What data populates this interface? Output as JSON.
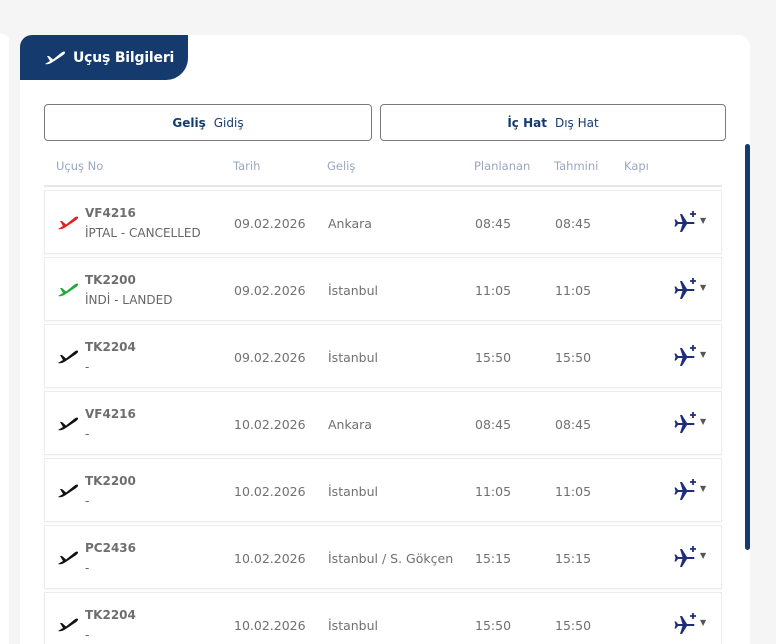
{
  "panel": {
    "title": "Uçuş Bilgileri",
    "title_icon": "plane-takeoff-icon"
  },
  "direction_toggle": {
    "active": "Geliş",
    "inactive": "Gidiş"
  },
  "scope_toggle": {
    "active": "İç Hat",
    "inactive": "Dış Hat"
  },
  "columns": {
    "flight_no": "Uçuş No",
    "date": "Tarih",
    "origin": "Geliş",
    "planned": "Planlanan",
    "estimated": "Tahmini",
    "gate": "Kapı"
  },
  "colors": {
    "brand": "#153a6e",
    "cancelled": "#e02020",
    "landed": "#20a83a",
    "scheduled": "#111111",
    "notify": "#1f2d7a"
  },
  "flights": [
    {
      "code": "VF4216",
      "status": "İPTAL - CANCELLED",
      "state": "cancelled",
      "date": "09.02.2026",
      "origin": "Ankara",
      "planned": "08:45",
      "estimated": "08:45",
      "gate": ""
    },
    {
      "code": "TK2200",
      "status": "İNDİ - LANDED",
      "state": "landed",
      "date": "09.02.2026",
      "origin": "İstanbul",
      "planned": "11:05",
      "estimated": "11:05",
      "gate": ""
    },
    {
      "code": "TK2204",
      "status": "-",
      "state": "scheduled",
      "date": "09.02.2026",
      "origin": "İstanbul",
      "planned": "15:50",
      "estimated": "15:50",
      "gate": ""
    },
    {
      "code": "VF4216",
      "status": "-",
      "state": "scheduled",
      "date": "10.02.2026",
      "origin": "Ankara",
      "planned": "08:45",
      "estimated": "08:45",
      "gate": ""
    },
    {
      "code": "TK2200",
      "status": "-",
      "state": "scheduled",
      "date": "10.02.2026",
      "origin": "İstanbul",
      "planned": "11:05",
      "estimated": "11:05",
      "gate": ""
    },
    {
      "code": "PC2436",
      "status": "-",
      "state": "scheduled",
      "date": "10.02.2026",
      "origin": "İstanbul / S. Gökçen",
      "planned": "15:15",
      "estimated": "15:15",
      "gate": ""
    },
    {
      "code": "TK2204",
      "status": "-",
      "state": "scheduled",
      "date": "10.02.2026",
      "origin": "İstanbul",
      "planned": "15:50",
      "estimated": "15:50",
      "gate": ""
    }
  ]
}
